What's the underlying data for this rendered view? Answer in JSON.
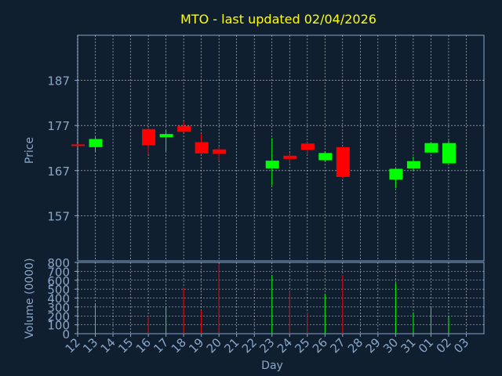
{
  "colors": {
    "background": "#0f1f2f",
    "title": "#ffff00",
    "axis_text": "#8aa6c8",
    "grid": "#ffffff",
    "up": "#00ff00",
    "down": "#ff0000"
  },
  "chart_data": [
    {
      "type": "candlestick",
      "title": "MTO - last updated 02/04/2026",
      "ylabel": "Price",
      "ylim": [
        147,
        197
      ],
      "yticks": [
        157,
        167,
        177,
        187
      ],
      "x_ticks": [
        "12",
        "13",
        "14",
        "15",
        "16",
        "17",
        "18",
        "19",
        "20",
        "21",
        "22",
        "23",
        "24",
        "25",
        "26",
        "27",
        "28",
        "29",
        "30",
        "31",
        "01",
        "02",
        "03"
      ],
      "candles": [
        {
          "day": "12",
          "open": 172.8,
          "high": 172.8,
          "low": 172.6,
          "close": 172.6
        },
        {
          "day": "13",
          "open": 172.2,
          "high": 174.4,
          "low": 171.0,
          "close": 174.0
        },
        {
          "day": "16",
          "open": 176.2,
          "high": 176.4,
          "low": 170.6,
          "close": 172.6
        },
        {
          "day": "17",
          "open": 174.4,
          "high": 175.9,
          "low": 171.3,
          "close": 175.1
        },
        {
          "day": "18",
          "open": 176.9,
          "high": 177.9,
          "low": 175.5,
          "close": 175.6
        },
        {
          "day": "19",
          "open": 173.3,
          "high": 175.2,
          "low": 170.7,
          "close": 170.8
        },
        {
          "day": "20",
          "open": 171.7,
          "high": 172.3,
          "low": 169.1,
          "close": 170.7
        },
        {
          "day": "23",
          "open": 167.5,
          "high": 174.2,
          "low": 163.7,
          "close": 169.2
        },
        {
          "day": "24",
          "open": 170.3,
          "high": 171.0,
          "low": 168.7,
          "close": 169.6
        },
        {
          "day": "25",
          "open": 173.0,
          "high": 173.2,
          "low": 170.5,
          "close": 171.6
        },
        {
          "day": "26",
          "open": 169.3,
          "high": 171.3,
          "low": 169.1,
          "close": 170.9
        },
        {
          "day": "27",
          "open": 172.2,
          "high": 172.2,
          "low": 165.3,
          "close": 165.6
        },
        {
          "day": "30",
          "open": 165.0,
          "high": 167.5,
          "low": 163.1,
          "close": 167.4
        },
        {
          "day": "31",
          "open": 167.5,
          "high": 170.1,
          "low": 167.0,
          "close": 169.1
        },
        {
          "day": "01",
          "open": 171.0,
          "high": 173.2,
          "low": 171.0,
          "close": 173.1
        },
        {
          "day": "02",
          "open": 168.6,
          "high": 173.7,
          "low": 168.6,
          "close": 173.1
        }
      ]
    },
    {
      "type": "bar",
      "xlabel": "Day",
      "ylabel": "Volume (0000)",
      "ylim": [
        0,
        800
      ],
      "yticks": [
        0,
        100,
        200,
        300,
        400,
        500,
        600,
        700,
        800
      ],
      "series": [
        {
          "values": [
            {
              "day": "13",
              "value": 340,
              "direction": "up"
            },
            {
              "day": "16",
              "value": 200,
              "direction": "down"
            },
            {
              "day": "17",
              "value": 290,
              "direction": "up"
            },
            {
              "day": "18",
              "value": 520,
              "direction": "down"
            },
            {
              "day": "19",
              "value": 260,
              "direction": "down"
            },
            {
              "day": "20",
              "value": 780,
              "direction": "down"
            },
            {
              "day": "23",
              "value": 660,
              "direction": "up"
            },
            {
              "day": "24",
              "value": 480,
              "direction": "down"
            },
            {
              "day": "25",
              "value": 240,
              "direction": "down"
            },
            {
              "day": "26",
              "value": 450,
              "direction": "up"
            },
            {
              "day": "27",
              "value": 660,
              "direction": "down"
            },
            {
              "day": "30",
              "value": 570,
              "direction": "up"
            },
            {
              "day": "31",
              "value": 240,
              "direction": "up"
            },
            {
              "day": "01",
              "value": 290,
              "direction": "up"
            },
            {
              "day": "02",
              "value": 200,
              "direction": "up"
            }
          ]
        }
      ]
    }
  ]
}
